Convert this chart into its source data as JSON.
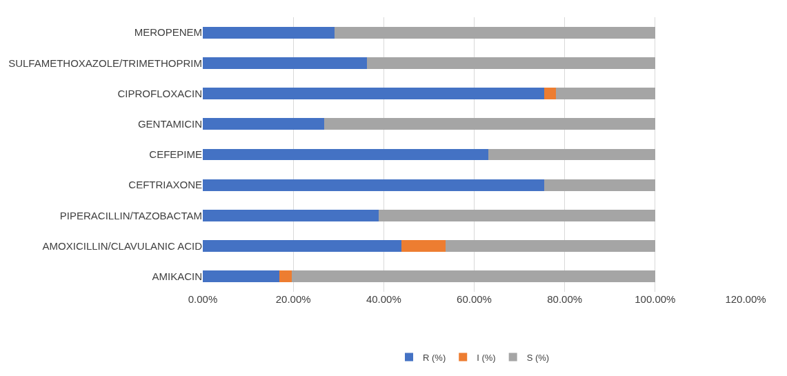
{
  "chart_data": {
    "type": "bar",
    "orientation": "horizontal",
    "stacked": true,
    "categories": [
      "MEROPENEM",
      "SULFAMETHOXAZOLE/TRIMETHOPRIM",
      "CIPROFLOXACIN",
      "GENTAMICIN",
      "CEFEPIME",
      "CEFTRIAXONE",
      "PIPERACILLIN/TAZOBACTAM",
      "AMOXICILLIN/CLAVULANIC ACID",
      "AMIKACIN"
    ],
    "series": [
      {
        "name": "R (%)",
        "color": "#4472c4",
        "values": [
          29.1,
          36.3,
          75.4,
          26.8,
          63.2,
          75.4,
          38.9,
          43.9,
          16.9
        ]
      },
      {
        "name": "I (%)",
        "color": "#ed7d31",
        "values": [
          0,
          0,
          2.6,
          0,
          0,
          0,
          0,
          9.8,
          2.7
        ]
      },
      {
        "name": "S (%)",
        "color": "#a5a5a5",
        "values": [
          70.9,
          63.7,
          22.0,
          73.2,
          36.8,
          24.6,
          61.1,
          46.3,
          80.4
        ]
      }
    ],
    "xlim": [
      0,
      120
    ],
    "xticks": [
      {
        "value": 0,
        "label": "0.00%"
      },
      {
        "value": 20,
        "label": "20.00%"
      },
      {
        "value": 40,
        "label": "40.00%"
      },
      {
        "value": 60,
        "label": "60.00%"
      },
      {
        "value": 80,
        "label": "80.00%"
      },
      {
        "value": 100,
        "label": "100.00%"
      },
      {
        "value": 120,
        "label": "120.00%"
      }
    ],
    "grid": "x",
    "legend": "bottom"
  }
}
